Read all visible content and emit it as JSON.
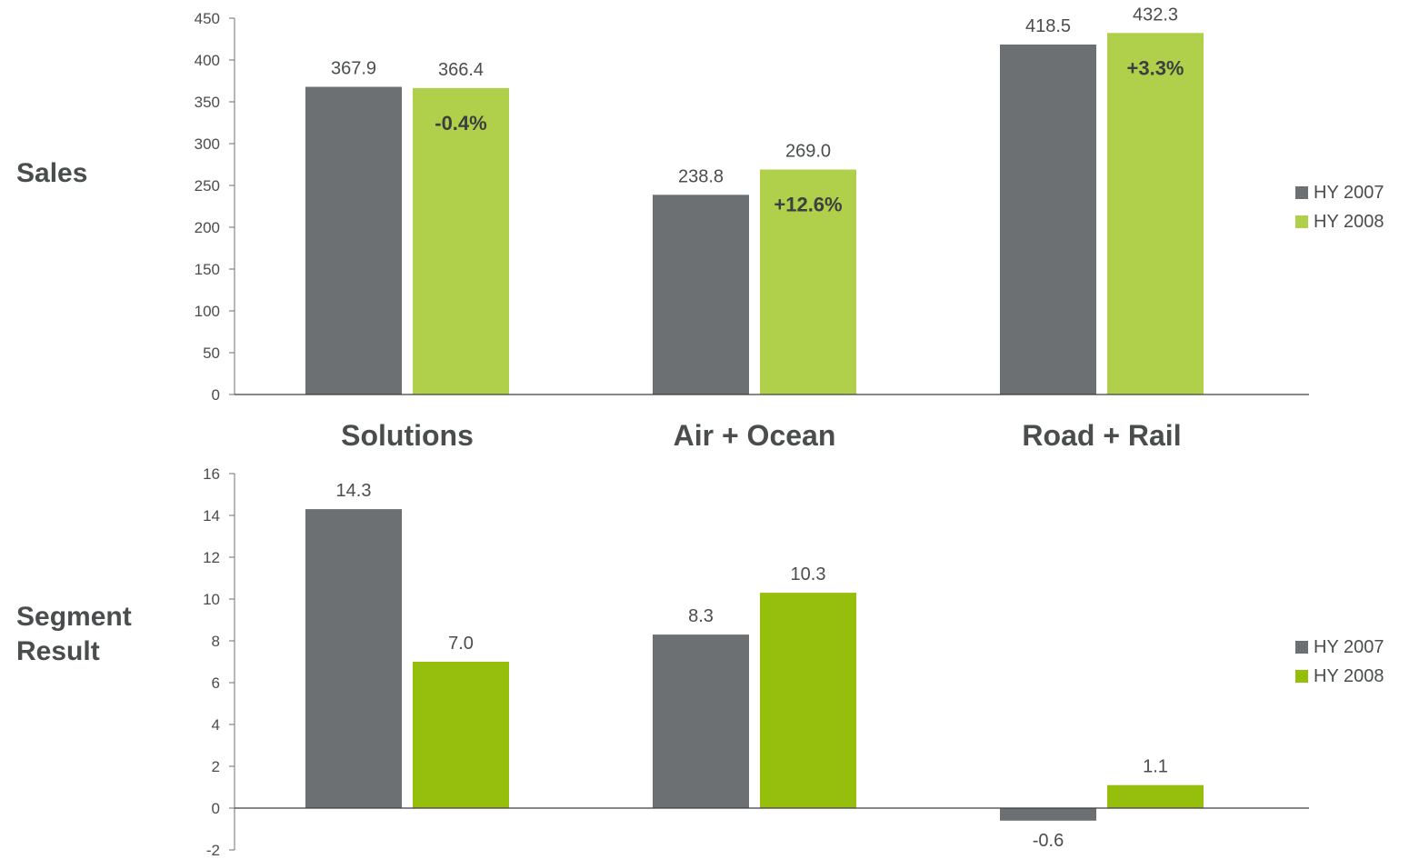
{
  "categories": [
    "Solutions",
    "Air + Ocean",
    "Road + Rail"
  ],
  "legend": [
    "HY 2007",
    "HY 2008"
  ],
  "colors": {
    "hy2007": "#6d7072",
    "hy2008_sales": "#b0d04b",
    "hy2008_segment": "#96be0d",
    "text": "#4a4d4e",
    "change": "#3c3f40"
  },
  "chart_data": [
    {
      "type": "bar",
      "side_label": "Sales",
      "categories": [
        "Solutions",
        "Air + Ocean",
        "Road + Rail"
      ],
      "series": [
        {
          "name": "HY 2007",
          "values": [
            367.9,
            238.8,
            418.5
          ],
          "labels": [
            "367.9",
            "238.8",
            "418.5"
          ]
        },
        {
          "name": "HY 2008",
          "values": [
            366.4,
            269.0,
            432.3
          ],
          "labels": [
            "366.4",
            "269.0",
            "432.3"
          ]
        }
      ],
      "changes": [
        "-0.4%",
        "+12.6%",
        "+3.3%"
      ],
      "ylim": [
        0,
        450
      ],
      "yticks": [
        0,
        50,
        100,
        150,
        200,
        250,
        300,
        350,
        400,
        450
      ],
      "legend_position": "right"
    },
    {
      "type": "bar",
      "side_label": "Segment Result",
      "categories": [
        "Solutions",
        "Air + Ocean",
        "Road + Rail"
      ],
      "series": [
        {
          "name": "HY 2007",
          "values": [
            14.3,
            8.3,
            -0.6
          ],
          "labels": [
            "14.3",
            "8.3",
            "-0.6"
          ]
        },
        {
          "name": "HY 2008",
          "values": [
            7.0,
            10.3,
            1.1
          ],
          "labels": [
            "7.0",
            "10.3",
            "1.1"
          ]
        }
      ],
      "ylim": [
        -2,
        16
      ],
      "yticks": [
        -2,
        0,
        2,
        4,
        6,
        8,
        10,
        12,
        14,
        16
      ],
      "legend_position": "right"
    }
  ]
}
